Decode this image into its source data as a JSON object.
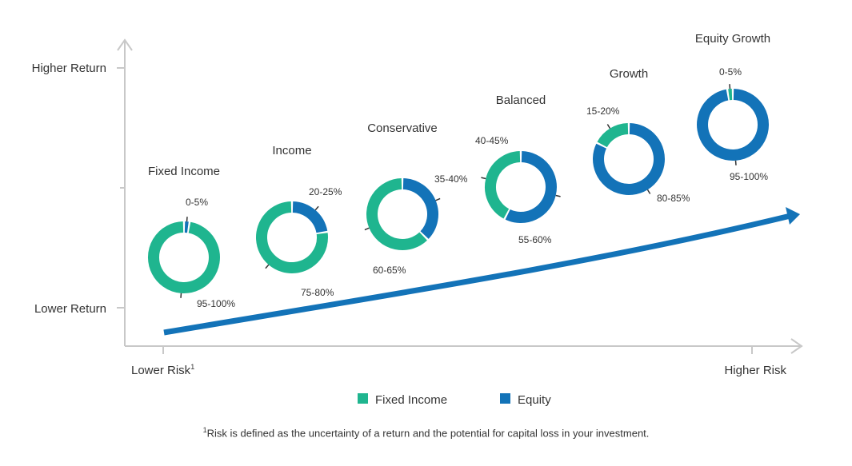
{
  "chart_data": {
    "type": "donut",
    "axes": {
      "y_high_label": "Higher Return",
      "y_low_label": "Lower Return",
      "x_low_label": "Lower Risk",
      "x_low_label_mark": "1",
      "x_high_label": "Higher Risk"
    },
    "legend": {
      "position": "bottom",
      "items": [
        {
          "name": "Fixed Income",
          "color": "#1FB58F"
        },
        {
          "name": "Equity",
          "color": "#1373B8"
        }
      ]
    },
    "portfolios": [
      {
        "name": "Fixed Income",
        "fixed_income": 97.5,
        "equity": 2.5,
        "fixed_income_label": "95-100%",
        "equity_label": "0-5%"
      },
      {
        "name": "Income",
        "fixed_income": 77.5,
        "equity": 22.5,
        "fixed_income_label": "75-80%",
        "equity_label": "20-25%"
      },
      {
        "name": "Conservative",
        "fixed_income": 62.5,
        "equity": 37.5,
        "fixed_income_label": "60-65%",
        "equity_label": "35-40%"
      },
      {
        "name": "Balanced",
        "fixed_income": 42.5,
        "equity": 57.5,
        "fixed_income_label": "40-45%",
        "equity_label": "55-60%"
      },
      {
        "name": "Growth",
        "fixed_income": 17.5,
        "equity": 82.5,
        "fixed_income_label": "15-20%",
        "equity_label": "80-85%"
      },
      {
        "name": "Equity Growth",
        "fixed_income": 2.5,
        "equity": 97.5,
        "fixed_income_label": "0-5%",
        "equity_label": "95-100%"
      }
    ],
    "trend_arrow": "lower risk / lower return to higher risk / higher return"
  },
  "footnote": {
    "mark": "1",
    "text": "Risk is defined as the uncertainty of a return and the potential for capital loss in your investment."
  }
}
